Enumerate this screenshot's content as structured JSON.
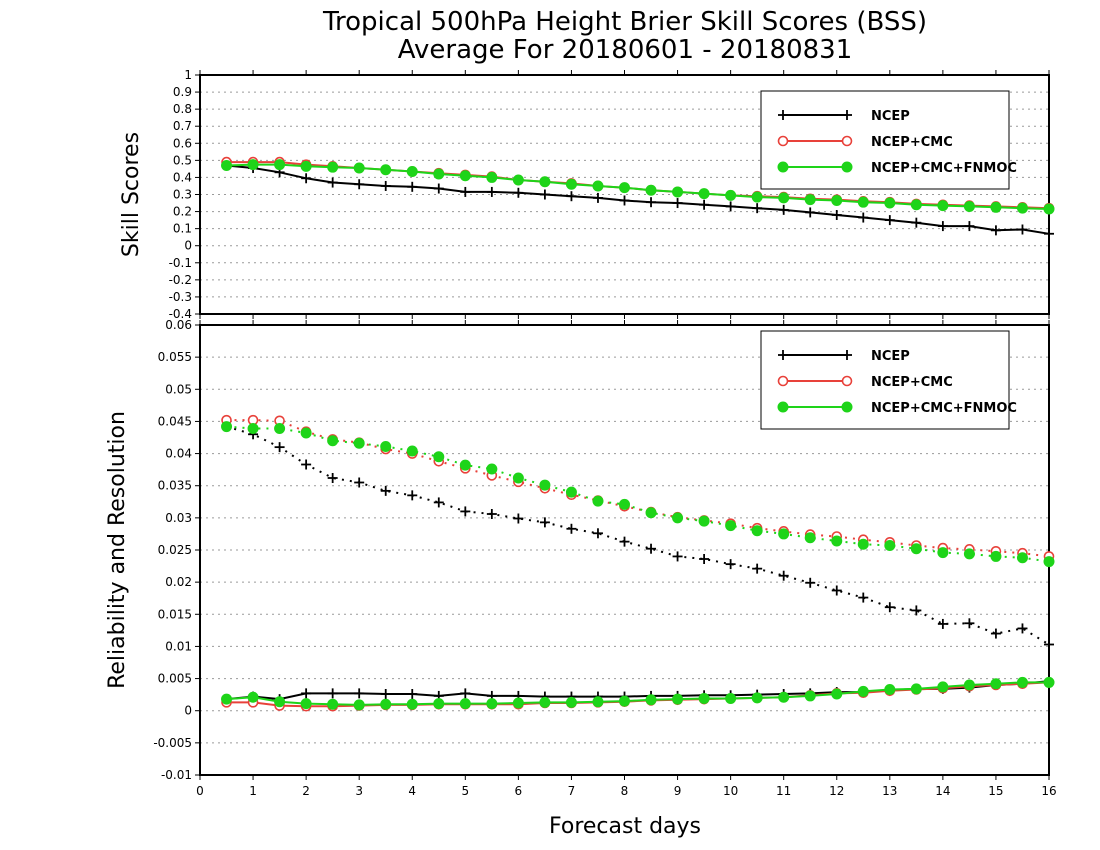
{
  "title": {
    "line1": "Tropical 500hPa Height Brier Skill Scores (BSS)",
    "line2": "Average For 20180601 - 20180831"
  },
  "xlabel": "Forecast days",
  "colors": {
    "ncep": "#000000",
    "ncep_cmc": "#e8413a",
    "ncep_cmc_fnmoc": "#1ed419",
    "grid": "#9a9a9a"
  },
  "chart_data": [
    {
      "type": "line",
      "ylabel": "Skill Scores",
      "ylim": [
        -0.4,
        1
      ],
      "yticks": [
        "-0.4",
        "-0.3",
        "-0.2",
        "-0.1",
        "0",
        "0.1",
        "0.2",
        "0.3",
        "0.4",
        "0.5",
        "0.6",
        "0.7",
        "0.8",
        "0.9",
        "1"
      ],
      "xlim": [
        0,
        16
      ],
      "xticks": [
        "0",
        "1",
        "2",
        "3",
        "4",
        "5",
        "6",
        "7",
        "8",
        "9",
        "10",
        "11",
        "12",
        "13",
        "14",
        "15",
        "16"
      ],
      "grid": true,
      "legend": "top-right",
      "x": [
        0.5,
        1,
        1.5,
        2,
        2.5,
        3,
        3.5,
        4,
        4.5,
        5,
        5.5,
        6,
        6.5,
        7,
        7.5,
        8,
        8.5,
        9,
        9.5,
        10,
        10.5,
        11,
        11.5,
        12,
        12.5,
        13,
        13.5,
        14,
        14.5,
        15,
        15.5,
        16
      ],
      "series": [
        {
          "name": "NCEP",
          "color_key": "ncep",
          "marker": "plus",
          "style": "solid",
          "values": [
            0.47,
            0.455,
            0.43,
            0.395,
            0.37,
            0.36,
            0.35,
            0.345,
            0.335,
            0.315,
            0.315,
            0.31,
            0.3,
            0.29,
            0.28,
            0.265,
            0.255,
            0.25,
            0.24,
            0.23,
            0.22,
            0.21,
            0.195,
            0.18,
            0.165,
            0.15,
            0.135,
            0.115,
            0.115,
            0.09,
            0.095,
            0.07
          ]
        },
        {
          "name": "NCEP+CMC",
          "color_key": "ncep_cmc",
          "marker": "open-circle",
          "style": "solid",
          "values": [
            0.49,
            0.49,
            0.49,
            0.475,
            0.465,
            0.455,
            0.445,
            0.435,
            0.425,
            0.415,
            0.405,
            0.385,
            0.375,
            0.365,
            0.35,
            0.34,
            0.325,
            0.315,
            0.305,
            0.295,
            0.29,
            0.285,
            0.275,
            0.27,
            0.26,
            0.255,
            0.245,
            0.24,
            0.235,
            0.23,
            0.225,
            0.22
          ]
        },
        {
          "name": "NCEP+CMC+FNMOC",
          "color_key": "ncep_cmc_fnmoc",
          "marker": "filled-circle",
          "style": "solid",
          "values": [
            0.47,
            0.475,
            0.475,
            0.465,
            0.46,
            0.455,
            0.445,
            0.435,
            0.42,
            0.41,
            0.4,
            0.385,
            0.375,
            0.36,
            0.35,
            0.34,
            0.325,
            0.315,
            0.305,
            0.295,
            0.285,
            0.28,
            0.27,
            0.265,
            0.255,
            0.25,
            0.24,
            0.235,
            0.23,
            0.225,
            0.22,
            0.215
          ]
        }
      ]
    },
    {
      "type": "line",
      "ylabel": "Reliability and Resolution",
      "ylim": [
        -0.01,
        0.06
      ],
      "yticks": [
        "-0.01",
        "-0.005",
        "0",
        "0.005",
        "0.01",
        "0.015",
        "0.02",
        "0.025",
        "0.03",
        "0.035",
        "0.04",
        "0.045",
        "0.05",
        "0.055",
        "0.06"
      ],
      "xlim": [
        0,
        16
      ],
      "xticks": [
        "0",
        "1",
        "2",
        "3",
        "4",
        "5",
        "6",
        "7",
        "8",
        "9",
        "10",
        "11",
        "12",
        "13",
        "14",
        "15",
        "16"
      ],
      "grid": true,
      "legend": "top-right",
      "x": [
        0.5,
        1,
        1.5,
        2,
        2.5,
        3,
        3.5,
        4,
        4.5,
        5,
        5.5,
        6,
        6.5,
        7,
        7.5,
        8,
        8.5,
        9,
        9.5,
        10,
        10.5,
        11,
        11.5,
        12,
        12.5,
        13,
        13.5,
        14,
        14.5,
        15,
        15.5,
        16
      ],
      "series": [
        {
          "name": "NCEP",
          "color_key": "ncep",
          "marker": "plus",
          "style": "dotted",
          "group": "resolution",
          "values": [
            0.0442,
            0.043,
            0.041,
            0.0383,
            0.0362,
            0.0355,
            0.0342,
            0.0335,
            0.0324,
            0.031,
            0.0306,
            0.0299,
            0.0293,
            0.0283,
            0.0276,
            0.0263,
            0.0252,
            0.024,
            0.0236,
            0.0228,
            0.0221,
            0.021,
            0.0199,
            0.0187,
            0.0176,
            0.0161,
            0.0156,
            0.0135,
            0.0136,
            0.012,
            0.0128,
            0.0103
          ]
        },
        {
          "name": "NCEP",
          "color_key": "ncep",
          "marker": "plus",
          "style": "solid",
          "group": "reliability",
          "values": [
            0.0018,
            0.0022,
            0.0018,
            0.0027,
            0.0027,
            0.0027,
            0.0026,
            0.0026,
            0.0023,
            0.0027,
            0.0023,
            0.0023,
            0.0022,
            0.0022,
            0.0022,
            0.0022,
            0.0023,
            0.0023,
            0.0024,
            0.0024,
            0.0025,
            0.0026,
            0.0027,
            0.0029,
            0.0029,
            0.0032,
            0.0034,
            0.0034,
            0.0036,
            0.004,
            0.0042,
            0.0046
          ]
        },
        {
          "name": "NCEP+CMC",
          "color_key": "ncep_cmc",
          "marker": "open-circle",
          "style": "dotted",
          "group": "resolution",
          "values": [
            0.0452,
            0.0452,
            0.0451,
            0.0434,
            0.0422,
            0.0417,
            0.0407,
            0.04,
            0.0388,
            0.0377,
            0.0366,
            0.0356,
            0.0346,
            0.0336,
            0.0327,
            0.0318,
            0.0309,
            0.0301,
            0.0296,
            0.0291,
            0.0284,
            0.0279,
            0.0274,
            0.0271,
            0.0266,
            0.0262,
            0.0257,
            0.0253,
            0.0251,
            0.0248,
            0.0245,
            0.024
          ]
        },
        {
          "name": "NCEP+CMC",
          "color_key": "ncep_cmc",
          "marker": "open-circle",
          "style": "solid",
          "group": "reliability",
          "values": [
            0.0013,
            0.0013,
            0.0008,
            0.0007,
            0.0007,
            0.0008,
            0.0009,
            0.0009,
            0.001,
            0.001,
            0.001,
            0.001,
            0.0012,
            0.0012,
            0.0013,
            0.0014,
            0.0016,
            0.0017,
            0.0018,
            0.0019,
            0.002,
            0.0021,
            0.0024,
            0.0027,
            0.0028,
            0.0031,
            0.0033,
            0.0035,
            0.0038,
            0.004,
            0.0042,
            0.0044
          ]
        },
        {
          "name": "NCEP+CMC+FNMOC",
          "color_key": "ncep_cmc_fnmoc",
          "marker": "filled-circle",
          "style": "dotted",
          "group": "resolution",
          "values": [
            0.0442,
            0.0439,
            0.0439,
            0.0432,
            0.042,
            0.0416,
            0.0411,
            0.0404,
            0.0395,
            0.0382,
            0.0376,
            0.0362,
            0.0351,
            0.034,
            0.0326,
            0.0321,
            0.0308,
            0.03,
            0.0295,
            0.0288,
            0.028,
            0.0275,
            0.0269,
            0.0264,
            0.0259,
            0.0257,
            0.0252,
            0.0246,
            0.0244,
            0.024,
            0.0238,
            0.0232
          ]
        },
        {
          "name": "NCEP+CMC+FNMOC",
          "color_key": "ncep_cmc_fnmoc",
          "marker": "filled-circle",
          "style": "solid",
          "group": "reliability",
          "values": [
            0.0018,
            0.0021,
            0.0014,
            0.0011,
            0.001,
            0.0009,
            0.001,
            0.001,
            0.0011,
            0.0011,
            0.0011,
            0.0012,
            0.0013,
            0.0013,
            0.0014,
            0.0015,
            0.0017,
            0.0018,
            0.0019,
            0.0019,
            0.002,
            0.0021,
            0.0023,
            0.0026,
            0.003,
            0.0033,
            0.0034,
            0.0037,
            0.004,
            0.0042,
            0.0044,
            0.0044
          ]
        }
      ]
    }
  ],
  "legend_labels": [
    "NCEP",
    "NCEP+CMC",
    "NCEP+CMC+FNMOC"
  ]
}
